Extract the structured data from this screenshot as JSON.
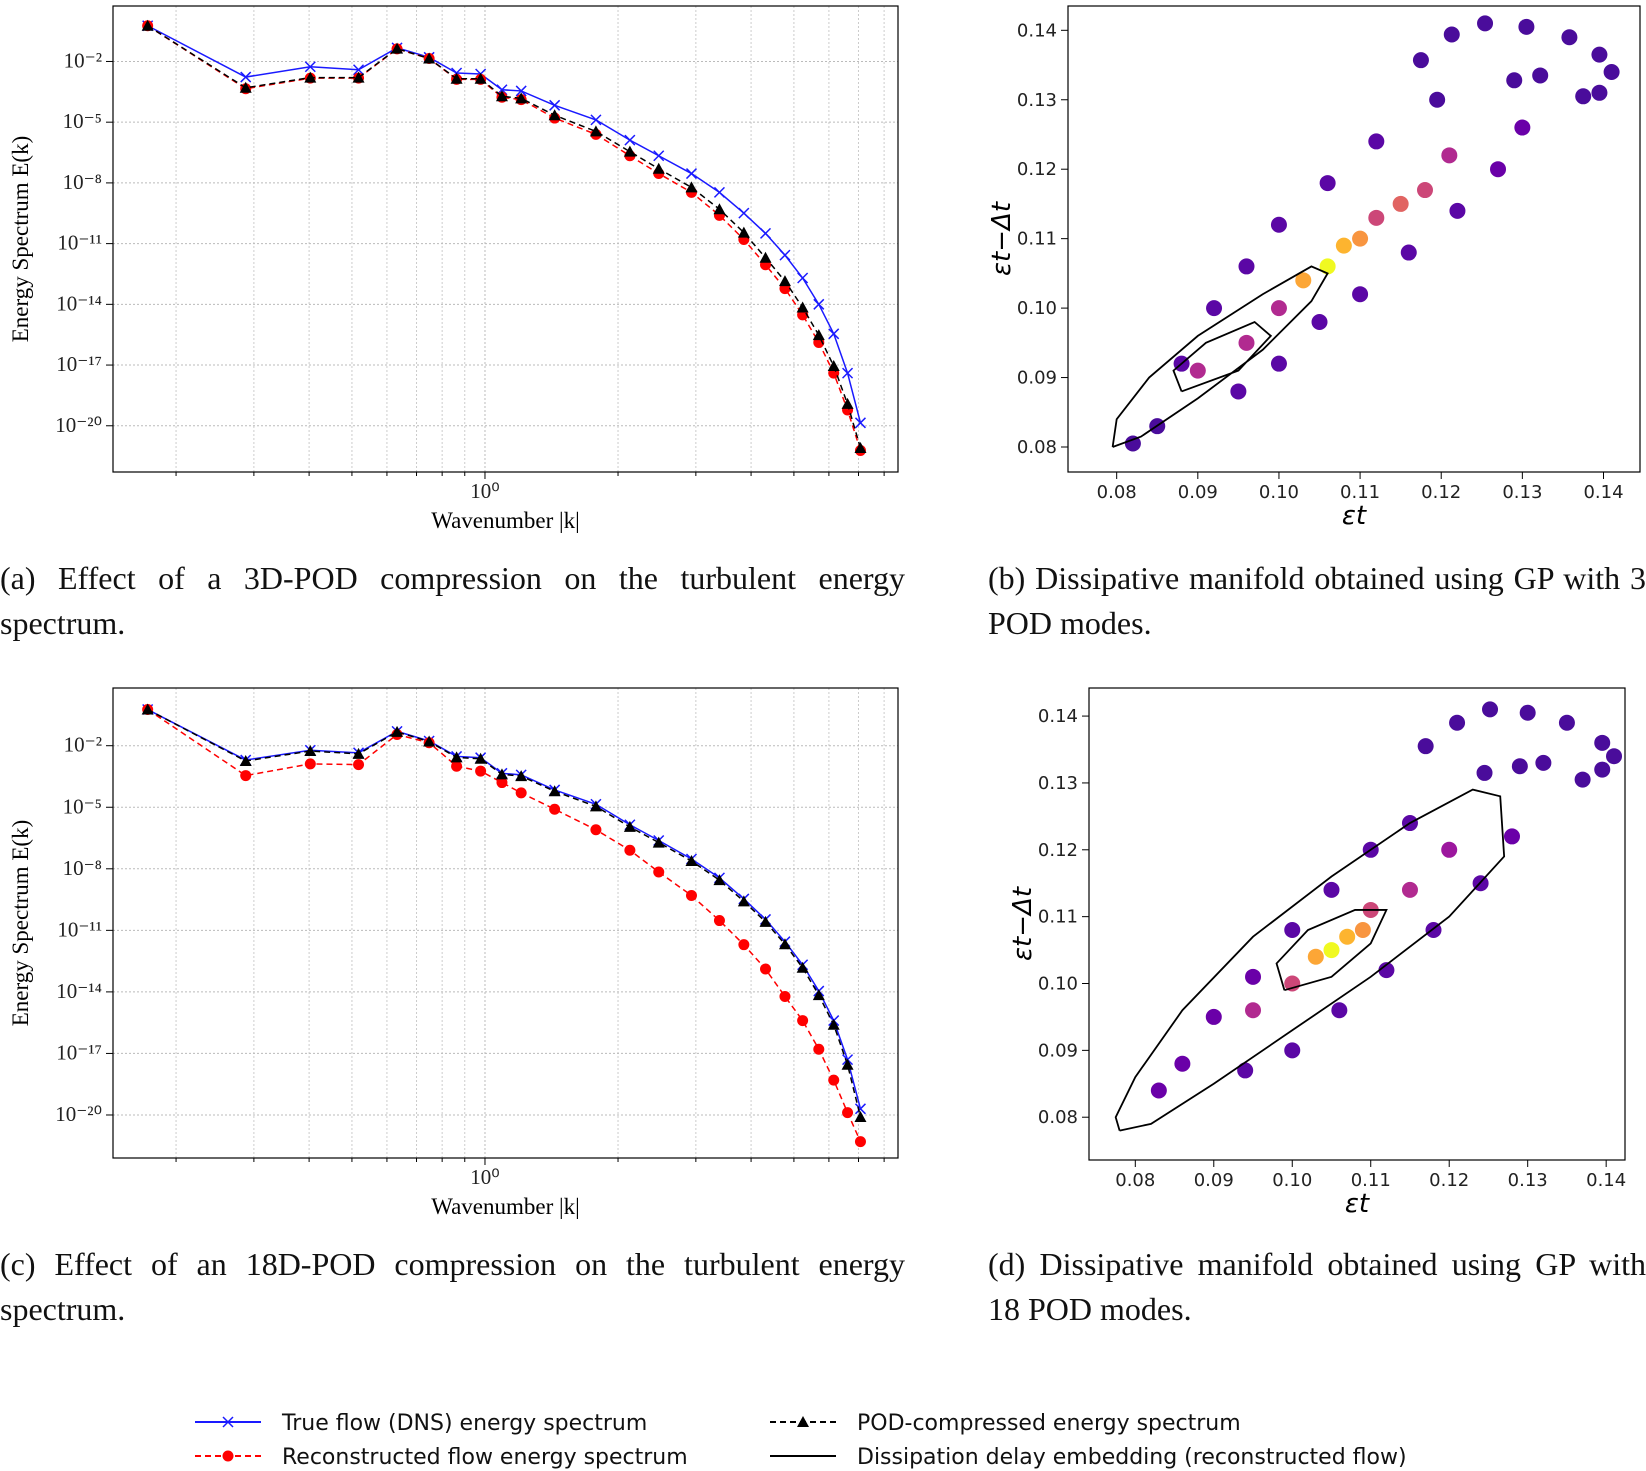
{
  "chart_data": [
    {
      "type": "line",
      "x_scale": "log",
      "y_scale": "log",
      "grid": true,
      "x_label": "Wavenumber |k|",
      "y_label": "Energy Spectrum E(k)",
      "caption": "(a) Effect of a 3D-POD compression on the turbulent energy spectrum.",
      "xlim": [
        0.144,
        8.6
      ],
      "ylim": [
        5.2e-23,
        5.5
      ],
      "xticks": [
        {
          "value": 1,
          "label": "10⁰"
        }
      ],
      "xminorticks": [
        0.2,
        0.3,
        0.4,
        0.5,
        0.6,
        0.7,
        0.8,
        0.9,
        2,
        3,
        4,
        5,
        6,
        7,
        8
      ],
      "yticks": [
        {
          "value": 0.01,
          "label": "10⁻²"
        },
        {
          "value": 1e-05,
          "label": "10⁻⁵"
        },
        {
          "value": 1e-08,
          "label": "10⁻⁸"
        },
        {
          "value": 1e-11,
          "label": "10⁻¹¹"
        },
        {
          "value": 1e-14,
          "label": "10⁻¹⁴"
        },
        {
          "value": 1e-17,
          "label": "10⁻¹⁷"
        },
        {
          "value": 1e-20,
          "label": "10⁻²⁰"
        }
      ],
      "x": [
        0.1725,
        0.2875,
        0.4025,
        0.5175,
        0.6325,
        0.7475,
        0.8625,
        0.9775,
        1.0925,
        1.2075,
        1.4375,
        1.7825,
        2.1275,
        2.4725,
        2.9325,
        3.3925,
        3.8525,
        4.3125,
        4.7725,
        5.2325,
        5.6925,
        6.1525,
        6.6125,
        7.0725
      ],
      "series": [
        {
          "name": "True flow (DNS) energy spectrum",
          "color": "#1a1aff",
          "marker": "x",
          "dash": "solid",
          "values": [
            0.58,
            0.0017,
            0.0055,
            0.0039,
            0.047,
            0.016,
            0.0027,
            0.0024,
            0.0004,
            0.00035,
            6.8e-05,
            1.3e-05,
            1.3e-06,
            2.2e-07,
            2.9e-08,
            3.4e-09,
            3.2e-10,
            3.2e-11,
            2.7e-12,
            2e-13,
            1e-14,
            3.5e-16,
            4e-18,
            1.4e-20
          ]
        },
        {
          "name": "Reconstructed flow energy spectrum",
          "color": "#ff0000",
          "marker": "o",
          "dash": "dashed",
          "values": [
            0.58,
            0.00045,
            0.0015,
            0.0015,
            0.042,
            0.014,
            0.0013,
            0.0013,
            0.00017,
            0.00013,
            1.6e-05,
            2.5e-06,
            2.2e-07,
            2.9e-08,
            3.4e-09,
            2.5e-10,
            1.6e-11,
            9e-13,
            6e-14,
            3e-15,
            1.3e-16,
            4e-18,
            6e-20,
            6e-22
          ]
        },
        {
          "name": "POD-compressed energy spectrum",
          "color": "#000000",
          "marker": "^",
          "dash": "dashed",
          "values": [
            0.58,
            0.0005,
            0.0016,
            0.0016,
            0.043,
            0.014,
            0.0014,
            0.0014,
            0.00019,
            0.00015,
            2.2e-05,
            3.5e-06,
            3.5e-07,
            5e-08,
            6e-09,
            5e-10,
            3.5e-11,
            2e-12,
            1.4e-13,
            7e-15,
            3e-16,
            9e-18,
            1.2e-19,
            8e-22
          ]
        }
      ]
    },
    {
      "type": "scatter",
      "x_label": "εt",
      "y_label": "εt−Δt",
      "caption": "(b) Dissipative manifold obtained using GP with 3 POD modes.",
      "xlim": [
        0.074,
        0.1445
      ],
      "ylim": [
        0.0764,
        0.1435
      ],
      "xticks": [
        0.08,
        0.09,
        {
          "value": 0.1,
          "label": "0.10"
        },
        0.11,
        0.12,
        0.13,
        0.14
      ],
      "yticks": [
        0.08,
        0.09,
        {
          "value": 0.1,
          "label": "0.10"
        },
        0.11,
        0.12,
        0.13,
        0.14
      ],
      "series": [
        {
          "x": [
            0.1213,
            0.1254,
            0.1305,
            0.1358,
            0.1395,
            0.141,
            0.1395,
            0.1375,
            0.1322,
            0.129,
            0.1175,
            0.1195,
            0.082,
            0.085,
            0.088,
            0.092,
            0.096,
            0.1,
            0.106,
            0.112,
            0.095,
            0.1,
            0.105,
            0.11,
            0.116,
            0.122,
            0.127,
            0.13,
            0.09,
            0.096,
            0.1,
            0.112,
            0.118,
            0.121,
            0.103,
            0.106,
            0.108,
            0.11,
            0.115
          ],
          "y": [
            0.1394,
            0.141,
            0.1405,
            0.139,
            0.1365,
            0.134,
            0.131,
            0.1305,
            0.1335,
            0.1328,
            0.1357,
            0.13,
            0.0805,
            0.083,
            0.092,
            0.1,
            0.106,
            0.112,
            0.118,
            0.124,
            0.088,
            0.092,
            0.098,
            0.102,
            0.108,
            0.114,
            0.12,
            0.126,
            0.091,
            0.095,
            0.1,
            0.113,
            0.117,
            0.122,
            0.104,
            0.106,
            0.109,
            0.11,
            0.115
          ],
          "colors": [
            "#4a0c9b",
            "#4a0c9b",
            "#4a0c9b",
            "#4a0c9b",
            "#4a0c9b",
            "#4a0c9b",
            "#4a0c9b",
            "#4a0c9b",
            "#4a0c9b",
            "#4a0c9b",
            "#4a0c9b",
            "#4a0c9b",
            "#4a0c9b",
            "#4a0c9b",
            "#5b07a5",
            "#5b07a5",
            "#5b07a5",
            "#5b07a5",
            "#5b07a5",
            "#5b07a5",
            "#5b07a5",
            "#5b07a5",
            "#5b07a5",
            "#5b07a5",
            "#5b07a5",
            "#5b07a5",
            "#6a00a8",
            "#6a00a8",
            "#b12a90",
            "#b12a90",
            "#b12a90",
            "#cc4778",
            "#cc4778",
            "#b12a90",
            "#fca636",
            "#f0f921",
            "#fdb42f",
            "#f89540",
            "#e16462"
          ]
        },
        {
          "name": "Dissipation delay embedding (reconstructed flow)",
          "color": "#000000",
          "x": [
            0.0795,
            0.083,
            0.09,
            0.098,
            0.104,
            0.106,
            0.104,
            0.098,
            0.09,
            0.084,
            0.08,
            0.0795,
            null,
            0.088,
            0.095,
            0.099,
            0.097,
            0.091,
            0.087,
            0.088
          ],
          "y": [
            0.08,
            0.0815,
            0.087,
            0.094,
            0.101,
            0.105,
            0.106,
            0.102,
            0.096,
            0.09,
            0.084,
            0.08,
            null,
            0.088,
            0.091,
            0.096,
            0.098,
            0.095,
            0.091,
            0.088
          ]
        }
      ]
    },
    {
      "type": "line",
      "x_scale": "log",
      "y_scale": "log",
      "grid": true,
      "x_label": "Wavenumber |k|",
      "y_label": "Energy Spectrum E(k)",
      "caption": "(c) Effect of an 18D-POD compression on the turbulent energy spectrum.",
      "xlim": [
        0.144,
        8.6
      ],
      "ylim": [
        8e-23,
        6.5
      ],
      "xticks": [
        {
          "value": 1,
          "label": "10⁰"
        }
      ],
      "xminorticks": [
        0.2,
        0.3,
        0.4,
        0.5,
        0.6,
        0.7,
        0.8,
        0.9,
        2,
        3,
        4,
        5,
        6,
        7,
        8
      ],
      "yticks": [
        {
          "value": 0.01,
          "label": "10⁻²"
        },
        {
          "value": 1e-05,
          "label": "10⁻⁵"
        },
        {
          "value": 1e-08,
          "label": "10⁻⁸"
        },
        {
          "value": 1e-11,
          "label": "10⁻¹¹"
        },
        {
          "value": 1e-14,
          "label": "10⁻¹⁴"
        },
        {
          "value": 1e-17,
          "label": "10⁻¹⁷"
        },
        {
          "value": 1e-20,
          "label": "10⁻²⁰"
        }
      ],
      "x": [
        0.1725,
        0.2875,
        0.4025,
        0.5175,
        0.6325,
        0.7475,
        0.8625,
        0.9775,
        1.0925,
        1.2075,
        1.4375,
        1.7825,
        2.1275,
        2.4725,
        2.9325,
        3.3925,
        3.8525,
        4.3125,
        4.7725,
        5.2325,
        5.6925,
        6.1525,
        6.6125,
        7.0725
      ],
      "series": [
        {
          "color": "#1a1aff",
          "marker": "x",
          "dash": "solid",
          "values": [
            0.58,
            0.002,
            0.006,
            0.0045,
            0.05,
            0.017,
            0.003,
            0.0026,
            0.00045,
            0.00038,
            7e-05,
            1.4e-05,
            1.4e-06,
            2.4e-07,
            3e-08,
            3.6e-09,
            3.4e-10,
            3.4e-11,
            2.8e-12,
            2.1e-13,
            1.1e-14,
            4e-16,
            5e-18,
            2e-20
          ]
        },
        {
          "color": "#ff0000",
          "marker": "o",
          "dash": "dashed",
          "values": [
            0.58,
            0.00035,
            0.0013,
            0.0012,
            0.035,
            0.014,
            0.001,
            0.00058,
            0.00016,
            5e-05,
            8e-06,
            8e-07,
            8e-08,
            7e-09,
            5e-10,
            3e-11,
            2e-12,
            1.3e-13,
            6e-15,
            4e-16,
            1.6e-17,
            5e-19,
            1.3e-20,
            5e-22
          ]
        },
        {
          "color": "#000000",
          "marker": "^",
          "dash": "dashed",
          "values": [
            0.58,
            0.0018,
            0.0055,
            0.004,
            0.047,
            0.016,
            0.0027,
            0.0023,
            0.0004,
            0.00033,
            6e-05,
            1.1e-05,
            1.1e-06,
            1.9e-07,
            2.4e-08,
            2.8e-09,
            2.6e-10,
            2.6e-11,
            2.1e-12,
            1.5e-13,
            7e-15,
            2.5e-16,
            2.8e-18,
            8e-21
          ]
        }
      ]
    },
    {
      "type": "scatter",
      "x_label": "εt",
      "y_label": "εt−Δt",
      "caption": "(d) Dissipative manifold obtained using GP with 18 POD modes.",
      "xlim": [
        0.0741,
        0.1424
      ],
      "ylim": [
        0.0736,
        0.1442
      ],
      "xticks": [
        0.08,
        0.09,
        {
          "value": 0.1,
          "label": "0.10"
        },
        0.11,
        0.12,
        0.13,
        0.14
      ],
      "yticks": [
        0.08,
        0.09,
        {
          "value": 0.1,
          "label": "0.10"
        },
        0.11,
        0.12,
        0.13,
        0.14
      ],
      "series": [
        {
          "x": [
            0.121,
            0.1252,
            0.13,
            0.135,
            0.1395,
            0.141,
            0.1395,
            0.137,
            0.132,
            0.129,
            0.117,
            0.1245,
            0.083,
            0.086,
            0.09,
            0.095,
            0.1,
            0.105,
            0.11,
            0.115,
            0.094,
            0.1,
            0.106,
            0.112,
            0.118,
            0.124,
            0.128,
            0.095,
            0.1,
            0.11,
            0.115,
            0.12,
            0.103,
            0.105,
            0.107,
            0.109
          ],
          "y": [
            0.139,
            0.141,
            0.1405,
            0.139,
            0.136,
            0.134,
            0.132,
            0.1305,
            0.133,
            0.1325,
            0.1355,
            0.1315,
            0.084,
            0.088,
            0.095,
            0.101,
            0.108,
            0.114,
            0.12,
            0.124,
            0.087,
            0.09,
            0.096,
            0.102,
            0.108,
            0.115,
            0.122,
            0.096,
            0.1,
            0.111,
            0.114,
            0.12,
            0.104,
            0.105,
            0.107,
            0.108
          ],
          "colors": [
            "#4a0c9b",
            "#4a0c9b",
            "#4a0c9b",
            "#4a0c9b",
            "#4a0c9b",
            "#4a0c9b",
            "#4a0c9b",
            "#4a0c9b",
            "#4a0c9b",
            "#4a0c9b",
            "#4a0c9b",
            "#4a0c9b",
            "#6a00a8",
            "#6a00a8",
            "#6a00a8",
            "#6a00a8",
            "#5b07a5",
            "#5b07a5",
            "#5b07a5",
            "#5b07a5",
            "#5b07a5",
            "#5b07a5",
            "#5b07a5",
            "#5b07a5",
            "#5b07a5",
            "#5b07a5",
            "#6a00a8",
            "#b12a90",
            "#cc4778",
            "#cc4778",
            "#b12a90",
            "#9c179e",
            "#fca636",
            "#f0f921",
            "#fdb42f",
            "#f89540"
          ]
        },
        {
          "color": "#000000",
          "x": [
            0.078,
            0.082,
            0.09,
            0.1,
            0.11,
            0.12,
            0.127,
            0.1265,
            0.123,
            0.115,
            0.105,
            0.095,
            0.086,
            0.08,
            0.0775,
            0.078,
            null,
            0.099,
            0.105,
            0.11,
            0.112,
            0.108,
            0.102,
            0.098,
            0.099
          ],
          "y": [
            0.078,
            0.079,
            0.085,
            0.093,
            0.101,
            0.11,
            0.119,
            0.128,
            0.129,
            0.124,
            0.116,
            0.107,
            0.096,
            0.086,
            0.08,
            0.078,
            null,
            0.099,
            0.101,
            0.106,
            0.111,
            0.111,
            0.108,
            0.103,
            0.099
          ]
        }
      ]
    }
  ]
}
